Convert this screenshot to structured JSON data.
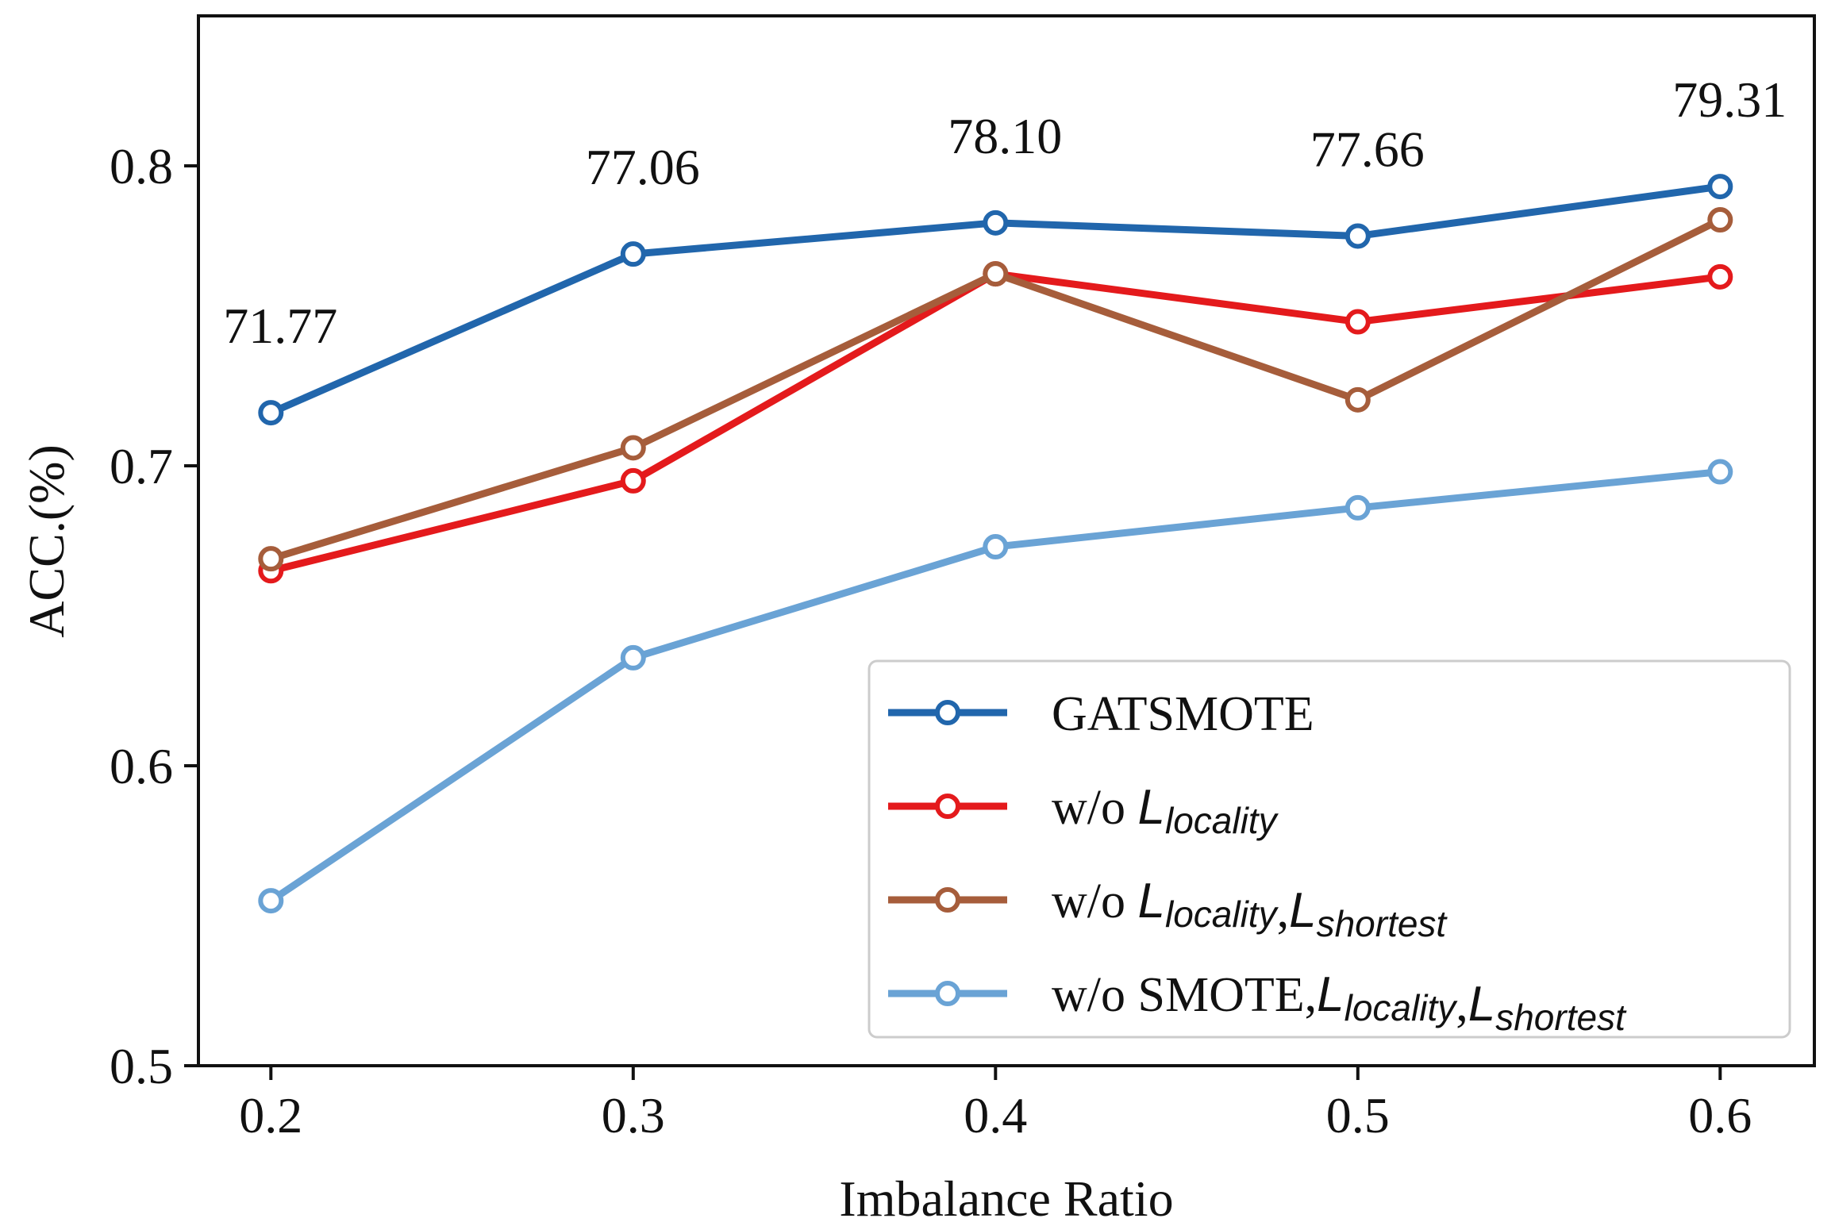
{
  "chart_data": {
    "type": "line",
    "xlabel": "Imbalance Ratio",
    "ylabel": "ACC.(%)",
    "x": [
      0.2,
      0.3,
      0.4,
      0.5,
      0.6
    ],
    "x_tick_labels": [
      "0.2",
      "0.3",
      "0.4",
      "0.5",
      "0.6"
    ],
    "xlim": [
      0.18,
      0.626
    ],
    "ylim": [
      0.5,
      0.85
    ],
    "y_ticks": [
      0.5,
      0.6,
      0.7,
      0.8
    ],
    "y_tick_labels": [
      "0.5",
      "0.6",
      "0.7",
      "0.8"
    ],
    "grid": false,
    "legend_position": "bottom-right",
    "series": [
      {
        "name": "GATSMOTE",
        "color": "#2166ac",
        "values": [
          0.7177,
          0.7706,
          0.781,
          0.7766,
          0.7931
        ]
      },
      {
        "name": "w/o L_locality",
        "color": "#e41a1c",
        "values": [
          0.665,
          0.695,
          0.764,
          0.748,
          0.763
        ]
      },
      {
        "name": "w/o L_locality,L_shortest",
        "color": "#a65d3b",
        "values": [
          0.669,
          0.706,
          0.764,
          0.722,
          0.782
        ]
      },
      {
        "name": "w/o SMOTE,L_locality,L_shortest",
        "color": "#6aa3d5",
        "values": [
          0.555,
          0.636,
          0.673,
          0.686,
          0.698
        ]
      }
    ],
    "data_labels": [
      "71.77",
      "77.06",
      "78.10",
      "77.66",
      "79.31"
    ],
    "legend_items": [
      {
        "prefix": "GATSMOTE",
        "parts": []
      },
      {
        "prefix": "w/o ",
        "parts": [
          {
            "sym": "L",
            "sub": "locality"
          }
        ]
      },
      {
        "prefix": "w/o ",
        "parts": [
          {
            "sym": "L",
            "sub": "locality"
          },
          {
            "sep": ","
          },
          {
            "sym": "L",
            "sub": "shortest"
          }
        ]
      },
      {
        "prefix": "w/o SMOTE,",
        "parts": [
          {
            "sym": "L",
            "sub": "locality"
          },
          {
            "sep": ","
          },
          {
            "sym": "L",
            "sub": "shortest"
          }
        ]
      }
    ]
  }
}
